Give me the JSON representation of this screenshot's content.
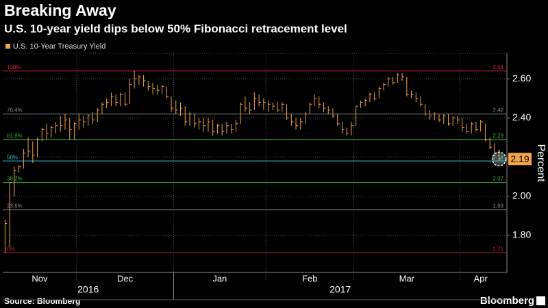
{
  "chart_data": {
    "type": "ohlc",
    "title": "Breaking Away",
    "subtitle": "U.S. 10-year yield dips below 50% Fibonacci retracement level",
    "y_axis_label": "Percent",
    "source": "Source: Bloomberg",
    "brand": "Bloomberg",
    "categories": [
      "Nov",
      null,
      null,
      null,
      null,
      null,
      null,
      null,
      null,
      null,
      null,
      null,
      null,
      null,
      null,
      null,
      "Dec",
      null,
      null,
      null,
      null,
      null,
      null,
      null,
      null,
      null,
      null,
      null,
      null,
      null,
      null,
      null,
      null,
      null,
      null,
      null,
      null,
      "Jan",
      null,
      null,
      null,
      null,
      null,
      null,
      null,
      null,
      null,
      null,
      null,
      null,
      null,
      null,
      null,
      null,
      null,
      null,
      null,
      "Feb",
      null,
      null,
      null,
      null,
      null,
      null,
      null,
      null,
      null,
      null,
      null,
      null,
      null,
      null,
      null,
      null,
      null,
      null,
      "Mar",
      null,
      null,
      null,
      null,
      null,
      null,
      null,
      null,
      null,
      null,
      null,
      null,
      null,
      null,
      null,
      null,
      null,
      null,
      null,
      null,
      null,
      null,
      "Apr",
      null,
      null,
      null,
      null,
      null,
      null,
      null,
      null
    ],
    "years": [
      "2016",
      "2017"
    ],
    "series": [
      {
        "name": "U.S. 10-Year Treasury Yield",
        "color": "#f2a54a",
        "high": [
          1.88,
          2.07,
          2.15,
          2.16,
          2.24,
          2.3,
          2.28,
          2.3,
          2.35,
          2.37,
          2.36,
          2.38,
          2.41,
          2.42,
          2.4,
          2.38,
          2.42,
          2.41,
          2.42,
          2.43,
          2.45,
          2.48,
          2.5,
          2.53,
          2.52,
          2.53,
          2.53,
          2.6,
          2.64,
          2.62,
          2.62,
          2.59,
          2.58,
          2.57,
          2.57,
          2.56,
          2.51,
          2.49,
          2.48,
          2.46,
          2.43,
          2.42,
          2.4,
          2.4,
          2.4,
          2.39,
          2.37,
          2.37,
          2.38,
          2.37,
          2.39,
          2.48,
          2.51,
          2.48,
          2.53,
          2.52,
          2.5,
          2.49,
          2.48,
          2.48,
          2.48,
          2.47,
          2.42,
          2.4,
          2.4,
          2.43,
          2.48,
          2.52,
          2.51,
          2.48,
          2.46,
          2.45,
          2.42,
          2.38,
          2.35,
          2.38,
          2.46,
          2.49,
          2.5,
          2.53,
          2.53,
          2.56,
          2.58,
          2.61,
          2.61,
          2.63,
          2.63,
          2.61,
          2.54,
          2.53,
          2.51,
          2.47,
          2.44,
          2.43,
          2.42,
          2.42,
          2.42,
          2.41,
          2.41,
          2.4,
          2.37,
          2.38,
          2.38,
          2.39,
          2.37,
          2.3,
          2.27,
          2.24
        ],
        "low": [
          1.71,
          1.74,
          2.0,
          2.12,
          2.14,
          2.2,
          2.17,
          2.2,
          2.28,
          2.29,
          2.3,
          2.32,
          2.33,
          2.34,
          2.29,
          2.29,
          2.34,
          2.35,
          2.36,
          2.37,
          2.38,
          2.42,
          2.45,
          2.46,
          2.46,
          2.46,
          2.46,
          2.47,
          2.55,
          2.57,
          2.56,
          2.54,
          2.52,
          2.52,
          2.52,
          2.5,
          2.43,
          2.42,
          2.41,
          2.36,
          2.36,
          2.35,
          2.34,
          2.33,
          2.33,
          2.31,
          2.32,
          2.31,
          2.32,
          2.32,
          2.33,
          2.37,
          2.43,
          2.42,
          2.44,
          2.46,
          2.44,
          2.43,
          2.44,
          2.43,
          2.43,
          2.39,
          2.36,
          2.34,
          2.34,
          2.37,
          2.42,
          2.46,
          2.45,
          2.43,
          2.42,
          2.4,
          2.36,
          2.32,
          2.31,
          2.31,
          2.36,
          2.45,
          2.46,
          2.48,
          2.49,
          2.5,
          2.54,
          2.56,
          2.57,
          2.58,
          2.59,
          2.51,
          2.5,
          2.48,
          2.46,
          2.41,
          2.39,
          2.39,
          2.38,
          2.37,
          2.36,
          2.36,
          2.37,
          2.33,
          2.32,
          2.32,
          2.33,
          2.33,
          2.28,
          2.24,
          2.21,
          2.18
        ],
        "close": [
          1.86,
          2.07,
          2.13,
          2.15,
          2.22,
          2.23,
          2.21,
          2.29,
          2.34,
          2.32,
          2.35,
          2.36,
          2.36,
          2.39,
          2.34,
          2.37,
          2.39,
          2.38,
          2.41,
          2.39,
          2.44,
          2.47,
          2.48,
          2.51,
          2.48,
          2.52,
          2.47,
          2.57,
          2.6,
          2.61,
          2.59,
          2.56,
          2.55,
          2.54,
          2.56,
          2.51,
          2.45,
          2.44,
          2.45,
          2.38,
          2.42,
          2.37,
          2.38,
          2.36,
          2.38,
          2.33,
          2.36,
          2.33,
          2.36,
          2.34,
          2.37,
          2.47,
          2.45,
          2.44,
          2.5,
          2.48,
          2.48,
          2.47,
          2.46,
          2.44,
          2.47,
          2.4,
          2.38,
          2.36,
          2.38,
          2.42,
          2.47,
          2.5,
          2.47,
          2.45,
          2.44,
          2.41,
          2.37,
          2.34,
          2.32,
          2.36,
          2.46,
          2.48,
          2.49,
          2.52,
          2.5,
          2.55,
          2.57,
          2.6,
          2.58,
          2.62,
          2.61,
          2.52,
          2.52,
          2.5,
          2.47,
          2.42,
          2.41,
          2.42,
          2.39,
          2.41,
          2.37,
          2.4,
          2.39,
          2.35,
          2.33,
          2.37,
          2.34,
          2.38,
          2.29,
          2.25,
          2.22,
          2.19
        ]
      }
    ],
    "levels": [
      {
        "label": "100%",
        "value": 2.64,
        "color": "#d0213f"
      },
      {
        "label": "76.4%",
        "value": 2.42,
        "color": "#8a8a8a"
      },
      {
        "label": "61.8%",
        "value": 2.29,
        "color": "#3fae3f"
      },
      {
        "label": "50%",
        "value": 2.18,
        "color": "#2ec4d6"
      },
      {
        "label": "38.2%",
        "value": 2.07,
        "color": "#3fae3f"
      },
      {
        "label": "23.6%",
        "value": 1.93,
        "color": "#8a8a8a"
      },
      {
        "label": "0%",
        "value": 1.71,
        "color": "#d0213f"
      }
    ],
    "ylim": [
      1.61,
      2.73
    ],
    "yticks": [
      {
        "value": 1.8,
        "label": "1.80"
      },
      {
        "value": 2.0,
        "label": "2.00"
      },
      {
        "value": 2.2,
        "label": "2.20"
      },
      {
        "value": 2.4,
        "label": "2.40"
      },
      {
        "value": 2.6,
        "label": "2.60"
      }
    ],
    "grid": true
  }
}
